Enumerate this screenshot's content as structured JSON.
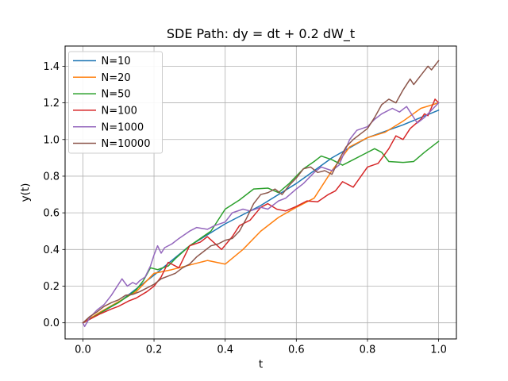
{
  "chart_data": {
    "type": "line",
    "title": "SDE Path: dy = dt + 0.2 dW_t",
    "xlabel": "t",
    "ylabel": "y(t)",
    "xlim": [
      -0.05,
      1.05
    ],
    "ylim": [
      -0.088,
      1.51
    ],
    "xticks": [
      0.0,
      0.2,
      0.4,
      0.6,
      0.8,
      1.0
    ],
    "xtick_labels": [
      "0.0",
      "0.2",
      "0.4",
      "0.6",
      "0.8",
      "1.0"
    ],
    "yticks": [
      0.0,
      0.2,
      0.4,
      0.6,
      0.8,
      1.0,
      1.2,
      1.4
    ],
    "ytick_labels": [
      "0.0",
      "0.2",
      "0.4",
      "0.6",
      "0.8",
      "1.0",
      "1.2",
      "1.4"
    ],
    "grid": true,
    "grid_color": "#b0b0b0",
    "spine_color": "#000000",
    "legend_position": "upper left",
    "series": [
      {
        "name": "N=10",
        "color": "#1f77b4",
        "x": [
          0,
          0.1,
          0.2,
          0.3,
          0.4,
          0.5,
          0.6,
          0.7,
          0.8,
          0.9,
          1.0
        ],
        "y": [
          0,
          0.11,
          0.26,
          0.42,
          0.54,
          0.64,
          0.76,
          0.9,
          1.01,
          1.08,
          1.16
        ]
      },
      {
        "name": "N=20",
        "color": "#ff7f0e",
        "x": [
          0,
          0.05,
          0.1,
          0.15,
          0.2,
          0.25,
          0.3,
          0.35,
          0.4,
          0.45,
          0.5,
          0.55,
          0.6,
          0.65,
          0.7,
          0.75,
          0.8,
          0.85,
          0.9,
          0.95,
          1.0
        ],
        "y": [
          0,
          0.06,
          0.115,
          0.17,
          0.27,
          0.29,
          0.315,
          0.34,
          0.32,
          0.4,
          0.5,
          0.575,
          0.63,
          0.68,
          0.83,
          0.96,
          1.01,
          1.04,
          1.1,
          1.17,
          1.2
        ]
      },
      {
        "name": "N=50",
        "color": "#2ca02c",
        "x": [
          0,
          0.02,
          0.05,
          0.08,
          0.1,
          0.13,
          0.15,
          0.17,
          0.19,
          0.21,
          0.24,
          0.26,
          0.3,
          0.33,
          0.36,
          0.4,
          0.44,
          0.48,
          0.52,
          0.55,
          0.58,
          0.6,
          0.62,
          0.65,
          0.67,
          0.7,
          0.73,
          0.76,
          0.79,
          0.82,
          0.84,
          0.86,
          0.9,
          0.93,
          0.96,
          1.0
        ],
        "y": [
          0,
          0.02,
          0.055,
          0.09,
          0.11,
          0.15,
          0.18,
          0.23,
          0.3,
          0.29,
          0.31,
          0.35,
          0.42,
          0.46,
          0.5,
          0.62,
          0.67,
          0.73,
          0.735,
          0.71,
          0.76,
          0.8,
          0.84,
          0.88,
          0.91,
          0.89,
          0.86,
          0.89,
          0.92,
          0.95,
          0.93,
          0.88,
          0.875,
          0.88,
          0.93,
          0.99
        ]
      },
      {
        "name": "N=100",
        "color": "#d62728",
        "x": [
          0,
          0.03,
          0.05,
          0.08,
          0.1,
          0.13,
          0.15,
          0.18,
          0.2,
          0.22,
          0.24,
          0.27,
          0.3,
          0.33,
          0.35,
          0.39,
          0.42,
          0.44,
          0.47,
          0.5,
          0.52,
          0.545,
          0.57,
          0.6,
          0.63,
          0.66,
          0.69,
          0.71,
          0.73,
          0.76,
          0.8,
          0.83,
          0.86,
          0.88,
          0.9,
          0.92,
          0.95,
          0.96,
          0.97,
          0.99,
          1.0
        ],
        "y": [
          0,
          0.03,
          0.05,
          0.075,
          0.09,
          0.12,
          0.135,
          0.17,
          0.2,
          0.25,
          0.33,
          0.3,
          0.42,
          0.44,
          0.47,
          0.4,
          0.47,
          0.53,
          0.56,
          0.63,
          0.65,
          0.62,
          0.61,
          0.635,
          0.665,
          0.66,
          0.7,
          0.72,
          0.77,
          0.74,
          0.85,
          0.87,
          0.95,
          1.02,
          1.0,
          1.06,
          1.11,
          1.14,
          1.13,
          1.22,
          1.2
        ]
      },
      {
        "name": "N=1000",
        "color": "#9467bd",
        "x": [
          0,
          0.005,
          0.02,
          0.04,
          0.06,
          0.08,
          0.1,
          0.11,
          0.125,
          0.14,
          0.15,
          0.16,
          0.175,
          0.19,
          0.2,
          0.21,
          0.22,
          0.23,
          0.25,
          0.27,
          0.3,
          0.32,
          0.35,
          0.37,
          0.4,
          0.42,
          0.45,
          0.47,
          0.5,
          0.52,
          0.55,
          0.57,
          0.6,
          0.62,
          0.65,
          0.67,
          0.7,
          0.72,
          0.75,
          0.77,
          0.8,
          0.82,
          0.84,
          0.87,
          0.89,
          0.91,
          0.94,
          0.96,
          0.98,
          1.0
        ],
        "y": [
          0,
          -0.02,
          0.03,
          0.07,
          0.1,
          0.15,
          0.21,
          0.24,
          0.2,
          0.22,
          0.21,
          0.23,
          0.25,
          0.31,
          0.37,
          0.42,
          0.38,
          0.41,
          0.43,
          0.46,
          0.5,
          0.52,
          0.51,
          0.53,
          0.55,
          0.6,
          0.62,
          0.61,
          0.63,
          0.62,
          0.665,
          0.68,
          0.73,
          0.76,
          0.82,
          0.85,
          0.83,
          0.86,
          1.0,
          1.05,
          1.07,
          1.11,
          1.14,
          1.17,
          1.15,
          1.18,
          1.09,
          1.12,
          1.16,
          1.2
        ]
      },
      {
        "name": "N=10000",
        "color": "#8c564b",
        "x": [
          0,
          0.02,
          0.04,
          0.06,
          0.08,
          0.1,
          0.12,
          0.14,
          0.16,
          0.18,
          0.2,
          0.22,
          0.24,
          0.26,
          0.28,
          0.3,
          0.32,
          0.34,
          0.36,
          0.38,
          0.4,
          0.42,
          0.44,
          0.46,
          0.48,
          0.5,
          0.52,
          0.54,
          0.56,
          0.58,
          0.6,
          0.62,
          0.64,
          0.66,
          0.68,
          0.7,
          0.72,
          0.74,
          0.76,
          0.78,
          0.8,
          0.82,
          0.84,
          0.86,
          0.88,
          0.9,
          0.92,
          0.93,
          0.95,
          0.97,
          0.98,
          1.0
        ],
        "y": [
          0,
          0.035,
          0.06,
          0.09,
          0.11,
          0.125,
          0.15,
          0.155,
          0.17,
          0.19,
          0.21,
          0.24,
          0.255,
          0.27,
          0.3,
          0.32,
          0.36,
          0.39,
          0.42,
          0.43,
          0.45,
          0.46,
          0.5,
          0.57,
          0.65,
          0.7,
          0.71,
          0.73,
          0.7,
          0.75,
          0.79,
          0.84,
          0.85,
          0.82,
          0.83,
          0.81,
          0.89,
          0.96,
          1.0,
          1.03,
          1.06,
          1.12,
          1.19,
          1.22,
          1.2,
          1.27,
          1.33,
          1.3,
          1.35,
          1.4,
          1.38,
          1.43
        ]
      }
    ]
  }
}
